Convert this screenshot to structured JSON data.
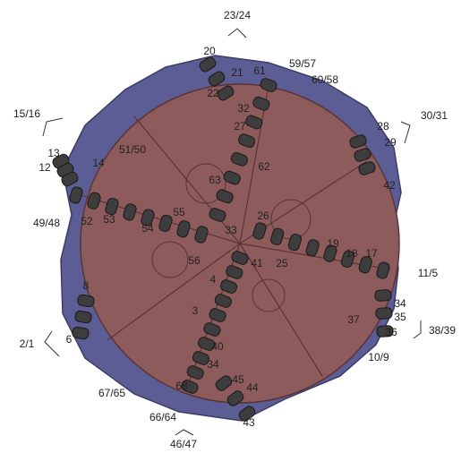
{
  "labels": [
    "23/24",
    "20",
    "21",
    "22",
    "61",
    "59/57",
    "60/58",
    "15/16",
    "32",
    "27",
    "30/31",
    "28",
    "29",
    "51/50",
    "13",
    "14",
    "12",
    "62",
    "63",
    "42",
    "55",
    "26",
    "49/48",
    "52",
    "53",
    "54",
    "33",
    "19",
    "56",
    "41",
    "25",
    "18",
    "17",
    "11/5",
    "4",
    "8",
    "34",
    "3",
    "35",
    "37",
    "36",
    "38/39",
    "2/1",
    "6",
    "40",
    "10/9",
    "34",
    "45",
    "44",
    "68",
    "67/65",
    "66/64",
    "43",
    "46/47"
  ]
}
